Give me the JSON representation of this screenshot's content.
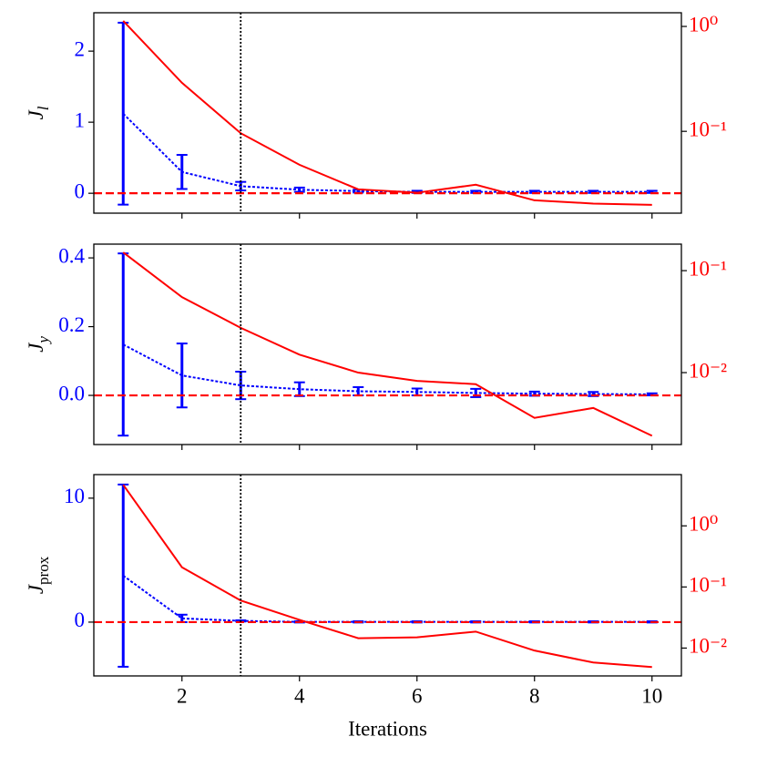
{
  "chart_data": [
    {
      "type": "line",
      "ylabel": {
        "main": "J",
        "sub": "l"
      },
      "x": [
        1,
        2,
        3,
        4,
        5,
        6,
        7,
        8,
        9,
        10
      ],
      "xlim": [
        0.5,
        10.5
      ],
      "xticks": [
        2,
        4,
        6,
        8,
        10
      ],
      "xtick_labels": false,
      "ylim": [
        -0.28,
        2.54
      ],
      "yticks": [
        0,
        1,
        2
      ],
      "y2log": true,
      "y2lim": [
        0.0166,
        1.35
      ],
      "y2ticks": [
        {
          "value": 0.1,
          "label": "10⁻¹"
        },
        {
          "value": 1,
          "label": "10⁰"
        }
      ],
      "vline": 3,
      "hline": 0,
      "series": [
        {
          "color": "#0000ff",
          "style": "dotted",
          "values": [
            1.12,
            0.3,
            0.1,
            0.05,
            0.03,
            0.02,
            0.02,
            0.02,
            0.02,
            0.02
          ],
          "errors": [
            1.28,
            0.24,
            0.06,
            0.03,
            0.02,
            0.015,
            0.015,
            0.015,
            0.015,
            0.015
          ]
        },
        {
          "color": "#ff0000",
          "style": "solid",
          "axis": "y2",
          "values": [
            1.13,
            0.29,
            0.096,
            0.048,
            0.028,
            0.026,
            0.031,
            0.022,
            0.0205,
            0.0199
          ]
        }
      ]
    },
    {
      "type": "line",
      "ylabel": {
        "main": "J",
        "sub": "y"
      },
      "x": [
        1,
        2,
        3,
        4,
        5,
        6,
        7,
        8,
        9,
        10
      ],
      "xlim": [
        0.5,
        10.5
      ],
      "xticks": [
        2,
        4,
        6,
        8,
        10
      ],
      "xtick_labels": false,
      "ylim": [
        -0.143,
        0.44
      ],
      "yticks": [
        {
          "value": 0,
          "label": "0.0"
        },
        0.2,
        0.4
      ],
      "y2log": true,
      "y2lim": [
        0.00197,
        0.182
      ],
      "y2ticks": [
        {
          "value": 0.01,
          "label": "10⁻²"
        },
        {
          "value": 0.1,
          "label": "10⁻¹"
        }
      ],
      "vline": 3,
      "hline": 0,
      "series": [
        {
          "color": "#0000ff",
          "style": "dotted",
          "values": [
            0.148,
            0.058,
            0.029,
            0.018,
            0.012,
            0.01,
            0.007,
            0.005,
            0.004,
            0.003
          ],
          "errors": [
            0.265,
            0.093,
            0.04,
            0.02,
            0.012,
            0.01,
            0.012,
            0.006,
            0.006,
            0.003
          ]
        },
        {
          "color": "#ff0000",
          "style": "solid",
          "axis": "y2",
          "values": [
            0.151,
            0.055,
            0.0275,
            0.015,
            0.01,
            0.0083,
            0.0077,
            0.0036,
            0.0045,
            0.0024
          ]
        }
      ]
    },
    {
      "type": "line",
      "ylabel": {
        "main": "J",
        "sub": "prox"
      },
      "xlabel": "Iterations",
      "x": [
        1,
        2,
        3,
        4,
        5,
        6,
        7,
        8,
        9,
        10
      ],
      "xlim": [
        0.5,
        10.5
      ],
      "xticks": [
        2,
        4,
        6,
        8,
        10
      ],
      "xtick_labels": true,
      "ylim": [
        -4.34,
        11.9
      ],
      "yticks": [
        0,
        10
      ],
      "y2log": true,
      "y2lim": [
        0.0035,
        6.9
      ],
      "y2ticks": [
        {
          "value": 0.01,
          "label": "10⁻²"
        },
        {
          "value": 0.1,
          "label": "10⁻¹"
        },
        {
          "value": 1,
          "label": "10⁰"
        }
      ],
      "vline": 3,
      "hline": 0,
      "series": [
        {
          "color": "#0000ff",
          "style": "dotted",
          "values": [
            3.75,
            0.3,
            0.1,
            0.02,
            0.02,
            0.02,
            0.02,
            0.02,
            0.02,
            0.02
          ],
          "errors": [
            7.35,
            0.3,
            0.05,
            0.05,
            0.05,
            0.05,
            0.05,
            0.05,
            0.05,
            0.05
          ]
        },
        {
          "color": "#ff0000",
          "style": "solid",
          "axis": "y2",
          "values": [
            4.7,
            0.21,
            0.06,
            0.029,
            0.0145,
            0.015,
            0.0186,
            0.0091,
            0.0058,
            0.0049
          ]
        }
      ]
    }
  ]
}
